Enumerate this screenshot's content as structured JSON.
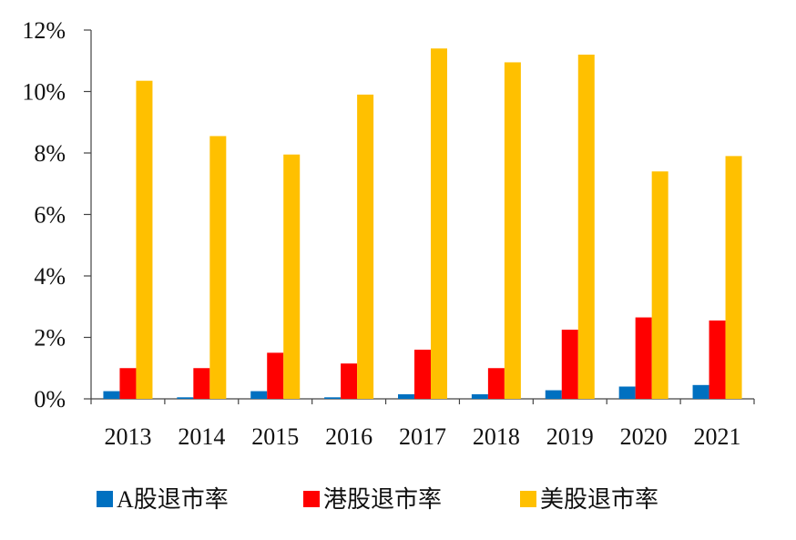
{
  "chart_data": {
    "type": "bar",
    "title": "",
    "xlabel": "",
    "ylabel": "",
    "ylim": [
      0,
      12
    ],
    "y_ticks": [
      0,
      2,
      4,
      6,
      8,
      10,
      12
    ],
    "y_tick_labels": [
      "0%",
      "2%",
      "4%",
      "6%",
      "8%",
      "10%",
      "12%"
    ],
    "categories": [
      "2013",
      "2014",
      "2015",
      "2016",
      "2017",
      "2018",
      "2019",
      "2020",
      "2021"
    ],
    "series": [
      {
        "name": "A股退市率",
        "color": "#0070C0",
        "values": [
          0.25,
          0.05,
          0.25,
          0.05,
          0.15,
          0.15,
          0.28,
          0.4,
          0.45
        ]
      },
      {
        "name": "港股退市率",
        "color": "#FF0000",
        "values": [
          1.0,
          1.0,
          1.5,
          1.15,
          1.6,
          1.0,
          2.25,
          2.65,
          2.55
        ]
      },
      {
        "name": "美股退市率",
        "color": "#FFC000",
        "values": [
          10.35,
          8.55,
          7.95,
          9.9,
          11.4,
          10.95,
          11.2,
          7.4,
          7.9
        ]
      }
    ],
    "grid": false,
    "legend_position": "bottom"
  }
}
